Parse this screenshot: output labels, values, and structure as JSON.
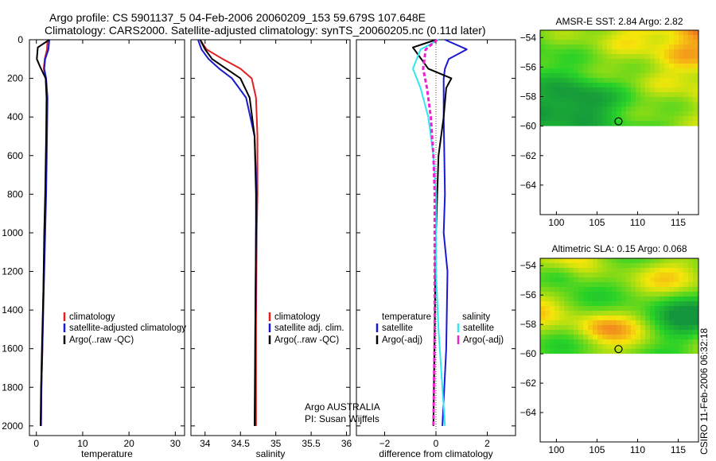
{
  "header": {
    "title_line1": "Argo profile: CS 5901137_5 04-Feb-2006 20060209_153 59.679S 107.648E",
    "title_line2": "Climatology: CARS2000. Satellite-adjusted climatology: synTS_20060205.nc (0.11d later)",
    "credit": "CSIRO 11-Feb-2006 06:32:18",
    "float_info_line1": "Argo AUSTRALIA",
    "float_info_line2": "PI: Susan Wijffels"
  },
  "colors": {
    "climatology": "#e02020",
    "satellite": "#1a1ad0",
    "argo": "#000000",
    "sal_satellite": "#30e8f0",
    "sal_argo": "#f020d0"
  },
  "chart_data": [
    {
      "type": "line",
      "xlabel": "temperature",
      "ylabel": "",
      "xlim": [
        -1.5,
        32
      ],
      "ylim": [
        2050,
        0
      ],
      "xticks": [
        0,
        10,
        20,
        30
      ],
      "yticks": [
        0,
        200,
        400,
        600,
        800,
        1000,
        1200,
        1400,
        1600,
        1800,
        2000
      ],
      "legend": [
        "climatology",
        "satellite-adjusted climatology",
        "Argo(..raw -QC)"
      ],
      "series": [
        {
          "name": "climatology",
          "x": [
            2.4,
            2.3,
            1.8,
            1.6,
            2.0,
            2.3,
            2.2,
            2.0,
            1.8,
            1.5,
            1.3,
            1.1,
            1.0
          ],
          "y": [
            0,
            50,
            100,
            150,
            200,
            300,
            500,
            800,
            1000,
            1300,
            1600,
            1800,
            2000
          ]
        },
        {
          "name": "satellite-adjusted climatology",
          "x": [
            2.8,
            2.6,
            1.9,
            1.7,
            2.1,
            2.4,
            2.3,
            2.1,
            1.9,
            1.6,
            1.3,
            1.1,
            1.0
          ],
          "y": [
            0,
            50,
            100,
            150,
            200,
            300,
            500,
            800,
            1000,
            1300,
            1600,
            1800,
            2000
          ]
        },
        {
          "name": "Argo(..raw -QC)",
          "x": [
            2.8,
            0.3,
            0.1,
            0.8,
            2.0,
            2.2,
            2.1,
            1.9,
            1.7,
            1.5,
            1.2,
            1.0,
            0.9
          ],
          "y": [
            0,
            40,
            100,
            140,
            200,
            300,
            500,
            800,
            1000,
            1300,
            1600,
            1800,
            2000
          ]
        }
      ]
    },
    {
      "type": "line",
      "xlabel": "salinity",
      "ylabel": "",
      "xlim": [
        33.8,
        36.05
      ],
      "ylim": [
        2050,
        0
      ],
      "xticks": [
        34,
        34.5,
        35,
        35.5,
        36
      ],
      "xticklabels": [
        "34",
        "34.5",
        "35",
        "35.5",
        "36"
      ],
      "legend": [
        "climatology",
        "satellite adj. clim.",
        "Argo(..raw -QC)"
      ],
      "series": [
        {
          "name": "climatology",
          "x": [
            33.93,
            34.02,
            34.25,
            34.5,
            34.66,
            34.72,
            34.74,
            34.74,
            34.73,
            34.72,
            34.72
          ],
          "y": [
            0,
            50,
            100,
            150,
            200,
            300,
            500,
            800,
            1000,
            1500,
            2000
          ]
        },
        {
          "name": "satellite adj. clim.",
          "x": [
            33.9,
            33.95,
            34.05,
            34.2,
            34.38,
            34.58,
            34.7,
            34.73,
            34.72,
            34.71,
            34.71
          ],
          "y": [
            0,
            50,
            100,
            150,
            200,
            300,
            500,
            800,
            1000,
            1500,
            2000
          ]
        },
        {
          "name": "Argo(..raw -QC)",
          "x": [
            33.93,
            34.0,
            34.1,
            34.3,
            34.5,
            34.63,
            34.7,
            34.72,
            34.72,
            34.71,
            34.7
          ],
          "y": [
            0,
            50,
            100,
            150,
            200,
            300,
            500,
            800,
            1000,
            1500,
            2000
          ]
        }
      ]
    },
    {
      "type": "line",
      "xlabel": "difference from climatology",
      "ylabel": "",
      "xlim": [
        -3.1,
        3.1
      ],
      "ylim": [
        2050,
        0
      ],
      "xticks": [
        -2,
        0,
        2
      ],
      "legend": [
        "temperature",
        "satellite",
        "Argo(-adj)",
        "salinity",
        "satellite",
        "Argo(-adj)"
      ],
      "series": [
        {
          "name": "temperature satellite",
          "x": [
            0.35,
            1.2,
            0.5,
            0.35,
            0.3,
            0.3,
            0.35,
            0.3,
            0.45,
            0.4,
            0.25
          ],
          "y": [
            0,
            50,
            100,
            150,
            200,
            400,
            800,
            1000,
            1200,
            1600,
            2000
          ]
        },
        {
          "name": "temperature Argo(-adj)",
          "x": [
            0,
            -0.9,
            -0.3,
            0.6,
            0.4,
            0.3,
            0.1,
            0.05,
            0.0,
            -0.05,
            -0.1
          ],
          "y": [
            0,
            40,
            150,
            200,
            250,
            400,
            600,
            800,
            1000,
            1500,
            2000
          ]
        },
        {
          "name": "salinity satellite",
          "x": [
            0.1,
            -0.6,
            -0.9,
            -0.6,
            -0.3,
            -0.1,
            0.0,
            0.0,
            0.0,
            0.1,
            0.35
          ],
          "y": [
            0,
            50,
            150,
            250,
            400,
            600,
            800,
            1000,
            1200,
            1500,
            2000
          ]
        },
        {
          "name": "salinity Argo(-adj)",
          "x": [
            0.05,
            -0.4,
            -0.5,
            -0.35,
            -0.2,
            -0.1,
            -0.05,
            -0.05,
            -0.05,
            -0.05,
            -0.1
          ],
          "y": [
            0,
            50,
            150,
            250,
            400,
            600,
            800,
            1000,
            1200,
            1500,
            2000
          ]
        }
      ]
    },
    {
      "type": "heatmap",
      "title": "AMSR-E SST: 2.84 Argo: 2.82",
      "xlim": [
        98,
        117.5
      ],
      "ylim": [
        -66,
        -53.5
      ],
      "xticks": [
        100,
        105,
        110,
        115
      ],
      "yticks": [
        -54,
        -56,
        -58,
        -60,
        -62,
        -64
      ],
      "data_extent_lat": [
        -60,
        -53.5
      ],
      "marker": {
        "lon": 107.648,
        "lat": -59.679
      }
    },
    {
      "type": "heatmap",
      "title": "Altimetric SLA: 0.15 Argo: 0.068",
      "xlim": [
        98,
        117.5
      ],
      "ylim": [
        -66,
        -53.5
      ],
      "xticks": [
        100,
        105,
        110,
        115
      ],
      "yticks": [
        -54,
        -56,
        -58,
        -60,
        -62,
        -64
      ],
      "data_extent_lat": [
        -60,
        -53.5
      ],
      "marker": {
        "lon": 107.648,
        "lat": -59.679
      }
    }
  ]
}
